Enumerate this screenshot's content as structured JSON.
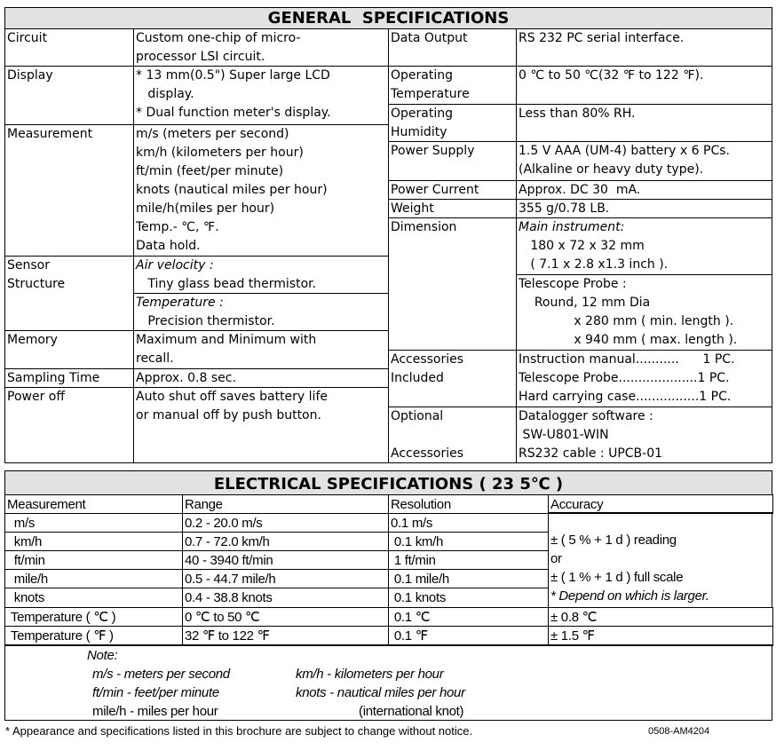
{
  "general": {
    "title": "GENERAL  SPECIFICATIONS",
    "left": [
      {
        "label": "Circuit",
        "value": "Custom one-chip of micro-\nprocessor LSI circuit."
      },
      {
        "label": "Display",
        "value": "* 13 mm(0.5\") Super large LCD\n   display.\n* Dual function meter's display."
      },
      {
        "label": "Measurement",
        "value": "m/s (meters per second)\nkm/h (kilometers per hour)\nft/min (feet/per minute)\nknots (nautical miles per hour)\nmile/h(miles per hour)\nTemp.- ℃, ℉.\nData hold."
      },
      {
        "label": "Sensor\nStructure",
        "value_a_title": "Air velocity :",
        "value_a": "   Tiny glass bead thermistor.",
        "value_b_title": "Temperature :",
        "value_b": "   Precision thermistor."
      },
      {
        "label": "Memory",
        "value": "Maximum and Minimum with\nrecall."
      },
      {
        "label": "Sampling Time",
        "value": "Approx. 0.8 sec."
      },
      {
        "label": "Power off",
        "value": "Auto shut off saves battery life\nor manual off by push button."
      }
    ],
    "right": [
      {
        "label": "Data Output",
        "value": "RS 232 PC serial interface."
      },
      {
        "label": "Operating\nTemperature",
        "value": "0 ℃ to 50 ℃(32 ℉ to 122 ℉)."
      },
      {
        "label": "Operating\nHumidity",
        "value": "Less than 80% RH."
      },
      {
        "label": "Power Supply",
        "value": "1.5 V AAA (UM-4) battery x 6 PCs.\n(Alkaline or heavy duty type)."
      },
      {
        "label": "Power Current",
        "value": "Approx. DC 30  mA."
      },
      {
        "label": "Weight",
        "value": "355 g/0.78 LB."
      },
      {
        "label": "Dimension",
        "value_a_title": "Main instrument:",
        "value_a": "   180 x 72 x 32 mm\n   ( 7.1 x 2.8 x1.3 inch ).",
        "value_b": "Telescope Probe :\n    Round, 12 mm Dia\n              x 280 mm ( min. length ).\n              x 940 mm ( max. length )."
      },
      {
        "label": "Accessories\nIncluded",
        "value": "Instruction manual...........      1 PC.\nTelescope Probe....................1 PC.\nHard carrying case................1 PC."
      },
      {
        "label": "Optional\n\nAccessories",
        "value": "Datalogger software :\n SW-U801-WIN\nRS232 cable : UPCB-01"
      }
    ]
  },
  "electrical": {
    "title": "ELECTRICAL SPECIFICATIONS ( 23 5℃ )",
    "headers": [
      "Measurement",
      "Range",
      "Resolution",
      "Accuracy"
    ],
    "rows": [
      [
        "  m/s",
        "0.2 - 20.0 m/s",
        "0.1 m/s"
      ],
      [
        "  km/h",
        "0.7 - 72.0 km/h",
        " 0.1 km/h"
      ],
      [
        "  ft/min",
        "40 - 3940 ft/min",
        " 1 ft/min"
      ],
      [
        "  mile/h",
        "0.5 - 44.7 mile/h",
        " 0.1 mile/h"
      ],
      [
        "  knots",
        "0.4 - 38.8 knots",
        " 0.1 knots"
      ],
      [
        " Temperature ( ℃ )",
        "0 ℃ to 50 ℃",
        " 0.1 ℃",
        "± 0.8 ℃"
      ],
      [
        " Temperature ( ℉ )",
        "32 ℉ to 122 ℉",
        " 0.1 ℉",
        "± 1.5 ℉"
      ]
    ],
    "accuracy_merged": "± ( 5 % + 1 d ) reading\nor\n± ( 1 % + 1 d ) full scale",
    "accuracy_note": "* Depend on which is larger.",
    "note_title": "Note:",
    "notes": [
      "m/s - meters per second",
      "km/h - kilometers per hour",
      "ft/min - feet/per minute",
      "knots - nautical miles per hour",
      "mile/h - miles per hour",
      "(international knot)"
    ]
  },
  "footer": {
    "disclaimer": "* Appearance and specifications listed in this brochure are subject to change without notice.",
    "code": "0508-AM4204"
  }
}
